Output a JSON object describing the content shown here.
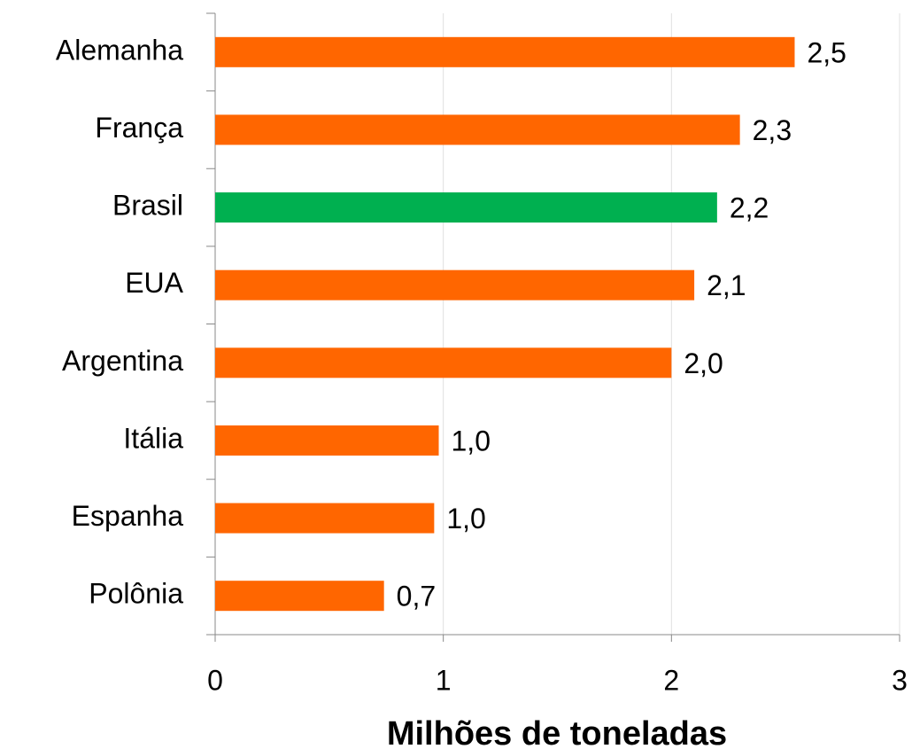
{
  "chart_data": {
    "type": "hbar",
    "xlabel": "Milhões de toneladas",
    "categories": [
      "Alemanha",
      "França",
      "Brasil",
      "EUA",
      "Argentina",
      "Itália",
      "Espanha",
      "Polônia"
    ],
    "values": [
      2.54,
      2.3,
      2.2,
      2.1,
      2.0,
      0.98,
      0.96,
      0.74
    ],
    "value_labels": [
      "2,5",
      "2,3",
      "2,2",
      "2,1",
      "2,0",
      "1,0",
      "1,0",
      "0,7"
    ],
    "colors": [
      "#ff6600",
      "#ff6600",
      "#00b050",
      "#ff6600",
      "#ff6600",
      "#ff6600",
      "#ff6600",
      "#ff6600"
    ],
    "xlim": [
      0,
      3
    ],
    "xticks": [
      0,
      1,
      2,
      3
    ],
    "grid": true
  }
}
